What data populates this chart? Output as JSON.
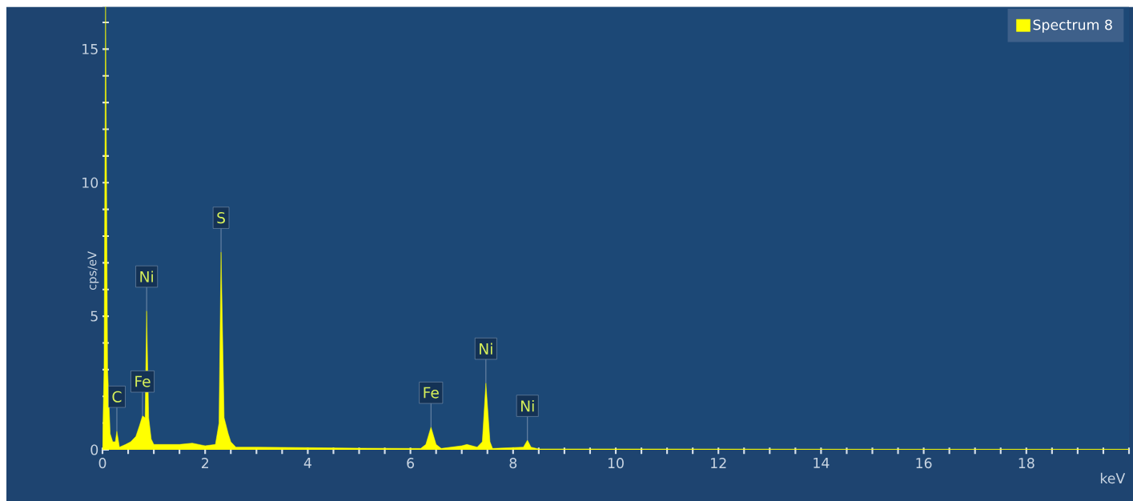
{
  "chart_data": {
    "type": "area",
    "xlabel": "keV",
    "ylabel": "cps/eV",
    "xlim": [
      0,
      20
    ],
    "ylim": [
      0,
      16.6
    ],
    "xticks": [
      0,
      {
        "value": 0.5,
        "label": null
      },
      {
        "value": 1,
        "label": null
      },
      {
        "value": 1.5,
        "label": null
      },
      2,
      {
        "value": 2.5,
        "label": null
      },
      {
        "value": 3,
        "label": null
      },
      {
        "value": 3.5,
        "label": null
      },
      4,
      {
        "value": 4.5,
        "label": null
      },
      {
        "value": 5,
        "label": null
      },
      {
        "value": 5.5,
        "label": null
      },
      6,
      {
        "value": 6.5,
        "label": null
      },
      {
        "value": 7,
        "label": null
      },
      {
        "value": 7.5,
        "label": null
      },
      8,
      {
        "value": 8.5,
        "label": null
      },
      {
        "value": 9,
        "label": null
      },
      {
        "value": 9.5,
        "label": null
      },
      10,
      {
        "value": 10.5,
        "label": null
      },
      {
        "value": 11,
        "label": null
      },
      {
        "value": 11.5,
        "label": null
      },
      12,
      {
        "value": 12.5,
        "label": null
      },
      {
        "value": 13,
        "label": null
      },
      {
        "value": 13.5,
        "label": null
      },
      14,
      {
        "value": 14.5,
        "label": null
      },
      {
        "value": 15,
        "label": null
      },
      {
        "value": 15.5,
        "label": null
      },
      16,
      {
        "value": 16.5,
        "label": null
      },
      {
        "value": 17,
        "label": null
      },
      {
        "value": 17.5,
        "label": null
      },
      18,
      {
        "value": 18.5,
        "label": null
      },
      {
        "value": 19,
        "label": null
      },
      {
        "value": 19.5,
        "label": null
      },
      {
        "value": 20,
        "label": null
      }
    ],
    "yticks": [
      0,
      {
        "value": 1,
        "label": null
      },
      {
        "value": 2,
        "label": null
      },
      {
        "value": 3,
        "label": null
      },
      {
        "value": 4,
        "label": null
      },
      5,
      {
        "value": 6,
        "label": null
      },
      {
        "value": 7,
        "label": null
      },
      {
        "value": 8,
        "label": null
      },
      {
        "value": 9,
        "label": null
      },
      10,
      {
        "value": 11,
        "label": null
      },
      {
        "value": 12,
        "label": null
      },
      {
        "value": 13,
        "label": null
      },
      {
        "value": 14,
        "label": null
      },
      15,
      {
        "value": 16,
        "label": null
      }
    ],
    "legend": "top right",
    "grid": false,
    "series": [
      {
        "name": "Spectrum 8",
        "color": "#ffff00",
        "x": [
          0,
          0.03,
          0.06,
          0.1,
          0.15,
          0.2,
          0.25,
          0.28,
          0.33,
          0.45,
          0.55,
          0.65,
          0.72,
          0.78,
          0.83,
          0.86,
          0.9,
          0.95,
          1.0,
          1.5,
          1.75,
          2.0,
          2.2,
          2.27,
          2.31,
          2.37,
          2.45,
          2.5,
          2.6,
          3.0,
          4.0,
          5.0,
          6.2,
          6.3,
          6.4,
          6.5,
          6.6,
          7.0,
          7.1,
          7.3,
          7.4,
          7.47,
          7.55,
          7.6,
          8.2,
          8.28,
          8.35,
          8.5,
          10,
          15,
          20
        ],
        "values": [
          0,
          3,
          16.6,
          3,
          0.6,
          0.3,
          0.3,
          0.7,
          0.1,
          0.2,
          0.3,
          0.5,
          0.9,
          1.27,
          1.2,
          5.2,
          1.2,
          0.4,
          0.2,
          0.2,
          0.25,
          0.15,
          0.2,
          1.0,
          7.4,
          1.2,
          0.6,
          0.3,
          0.1,
          0.1,
          0.08,
          0.06,
          0.05,
          0.2,
          0.85,
          0.2,
          0.05,
          0.15,
          0.2,
          0.1,
          0.3,
          2.5,
          0.3,
          0.05,
          0.1,
          0.36,
          0.1,
          0.03,
          0.03,
          0.02,
          0.02
        ]
      }
    ],
    "annotations": [
      {
        "text": "C",
        "x": 0.28,
        "y": 0.7
      },
      {
        "text": "Fe",
        "x": 0.78,
        "y": 1.27
      },
      {
        "text": "Ni",
        "x": 0.86,
        "y": 5.2
      },
      {
        "text": "S",
        "x": 2.31,
        "y": 7.4
      },
      {
        "text": "Fe",
        "x": 6.4,
        "y": 0.85
      },
      {
        "text": "Ni",
        "x": 7.47,
        "y": 2.5
      },
      {
        "text": "Ni",
        "x": 8.28,
        "y": 0.36
      }
    ]
  }
}
